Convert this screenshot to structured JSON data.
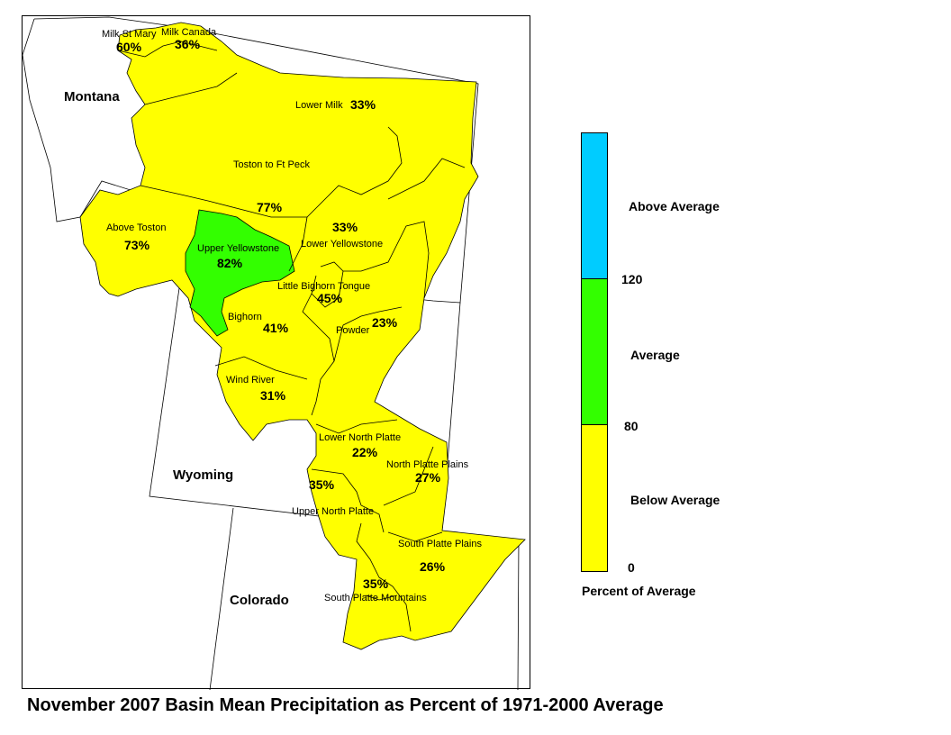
{
  "title": "November 2007 Basin Mean Precipitation as Percent of 1971-2000 Average",
  "states": [
    "Montana",
    "Wyoming",
    "Colorado"
  ],
  "basins": [
    {
      "name": "Milk St Mary",
      "pct": "60%",
      "category": "Below Average"
    },
    {
      "name": "Milk Canada",
      "pct": "36%",
      "category": "Below Average"
    },
    {
      "name": "Lower Milk",
      "pct": "33%",
      "category": "Below Average"
    },
    {
      "name": "Toston to Ft Peck",
      "pct": "77%",
      "category": "Below Average"
    },
    {
      "name": "Above Toston",
      "pct": "73%",
      "category": "Below Average"
    },
    {
      "name": "Upper Yellowstone",
      "pct": "82%",
      "category": "Average"
    },
    {
      "name": "Lower Yellowstone",
      "pct": "33%",
      "category": "Below Average"
    },
    {
      "name": "Little Bighorn Tongue",
      "pct": "45%",
      "category": "Below Average"
    },
    {
      "name": "Bighorn",
      "pct": "41%",
      "category": "Below Average"
    },
    {
      "name": "Powder",
      "pct": "23%",
      "category": "Below Average"
    },
    {
      "name": "Wind River",
      "pct": "31%",
      "category": "Below Average"
    },
    {
      "name": "Lower North Platte",
      "pct": "22%",
      "category": "Below Average"
    },
    {
      "name": "North Platte Plains",
      "pct": "27%",
      "category": "Below Average"
    },
    {
      "name": "Upper North Platte",
      "pct": "35%",
      "category": "Below Average"
    },
    {
      "name": "South Platte Plains",
      "pct": "26%",
      "category": "Below Average"
    },
    {
      "name": "South Platte Mountains",
      "pct": "35%",
      "category": "Below Average"
    }
  ],
  "legend": {
    "title": "Percent of Average",
    "classes": [
      {
        "label": "Above Average",
        "color": "#00ccff"
      },
      {
        "label": "Average",
        "color": "#33ff00"
      },
      {
        "label": "Below Average",
        "color": "#ffff00"
      }
    ],
    "breaks": [
      "120",
      "80",
      "0"
    ]
  }
}
